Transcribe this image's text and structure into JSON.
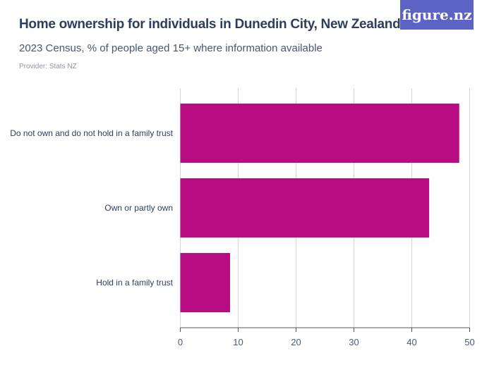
{
  "title": "Home ownership for individuals in Dunedin City, New Zealand",
  "subtitle": "2023 Census, % of people aged 15+ where information available",
  "provider": "Provider: Stats NZ",
  "logo": "figure.nz",
  "chart_data": {
    "type": "bar",
    "orientation": "horizontal",
    "categories": [
      "Do not own and do not hold in a family trust",
      "Own or partly own",
      "Hold in a family trust"
    ],
    "values": [
      48.2,
      43.0,
      8.6
    ],
    "xlim": [
      0,
      50
    ],
    "xticks": [
      0,
      10,
      20,
      30,
      40,
      50
    ],
    "grid": true,
    "color": "#b90b82"
  }
}
